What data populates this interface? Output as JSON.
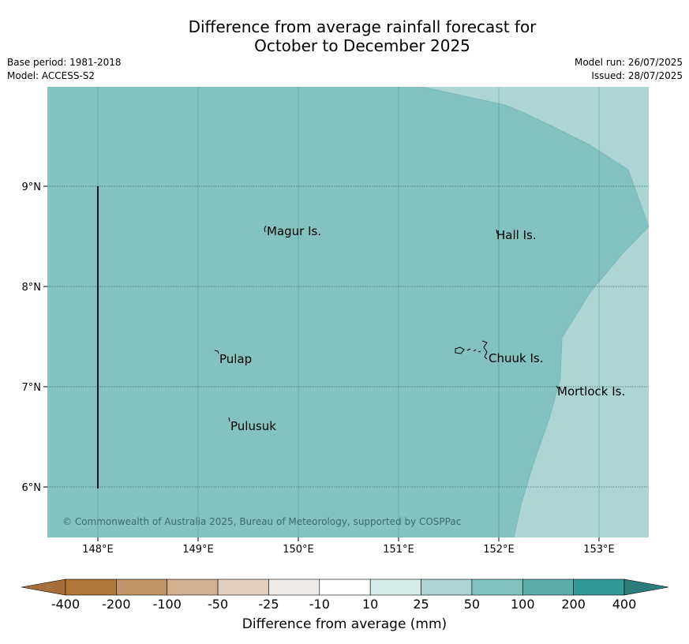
{
  "title": {
    "line1": "Difference from average rainfall forecast for",
    "line2": "October to December 2025"
  },
  "info": {
    "base_period": "Base period: 1981-2018",
    "model": "Model: ACCESS-S2",
    "model_run": "Model run: 26/07/2025",
    "issued": "Issued: 28/07/2025"
  },
  "map": {
    "lon_ticks": [
      "148°E",
      "149°E",
      "150°E",
      "151°E",
      "152°E",
      "153°E"
    ],
    "lat_ticks": [
      "9°N",
      "8°N",
      "7°N",
      "6°N"
    ],
    "places": [
      "Magur Is.",
      "Hall Is.",
      "Pulap",
      "Chuuk Is.",
      "Mortlock Is.",
      "Pulusuk"
    ],
    "copyright": "© Commonwealth of Australia 2025, Bureau of Meteorology, supported by COSPPac",
    "colors": {
      "band_50_100": "#84c2c0",
      "band_25_50": "#acd5d4"
    }
  },
  "colorbar": {
    "ticks": [
      "-400",
      "-200",
      "-100",
      "-50",
      "-25",
      "-10",
      "10",
      "25",
      "50",
      "100",
      "200",
      "400"
    ],
    "colors": [
      "#a56f39",
      "#b0763a",
      "#c2946a",
      "#d2b090",
      "#e2cfc0",
      "#efebe7",
      "#ffffff",
      "#d6ebea",
      "#acd5d4",
      "#84c2c0",
      "#5aadab",
      "#349a97",
      "#2b7d79"
    ],
    "label": "Difference from average (mm)"
  }
}
